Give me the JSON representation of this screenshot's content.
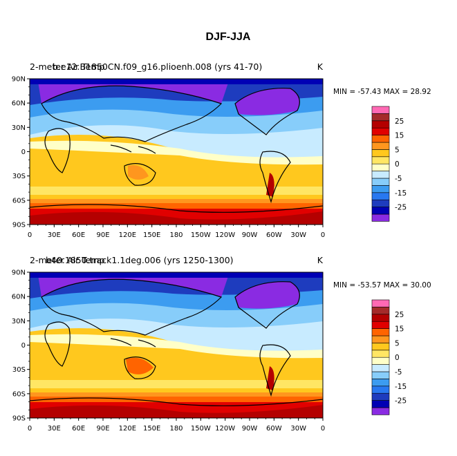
{
  "figure": {
    "title": "DJF-JJA"
  },
  "colors": {
    "levels": [
      "#8a2be2",
      "#0000b4",
      "#1e3cbe",
      "#2878f0",
      "#3c9cf0",
      "#87cdfa",
      "#c8ebff",
      "#ffffc8",
      "#ffe664",
      "#ffc81e",
      "#ff961e",
      "#ff6400",
      "#e10000",
      "#b40000",
      "#a52a2a",
      "#ff69b4"
    ],
    "coast": "#000000"
  },
  "colorbar": {
    "labels": [
      "25",
      "15",
      "5",
      "0",
      "-5",
      "-15",
      "-25"
    ]
  },
  "axes": {
    "lat_labels": [
      "90N",
      "60N",
      "30N",
      "0",
      "30S",
      "60S",
      "90S"
    ],
    "lon_labels": [
      "0",
      "30E",
      "60E",
      "90E",
      "120E",
      "150E",
      "180",
      "150W",
      "120W",
      "90W",
      "60W",
      "30W",
      "0"
    ]
  },
  "panels": [
    {
      "left_title_a": "2-meter Air Temp",
      "left_title_b": "b.e12.B1850CN.f09_g16.plioenh.008  (yrs 41-70)",
      "units": "K",
      "stats": "MIN = -57.43   MAX =  28.92"
    },
    {
      "left_title_a": "2-meter Air Temp",
      "left_title_b": "b40.1850.track1.1deg.006  (yrs 1250-1300)",
      "units": "K",
      "stats": "MIN = -53.57   MAX =  30.00"
    }
  ]
}
